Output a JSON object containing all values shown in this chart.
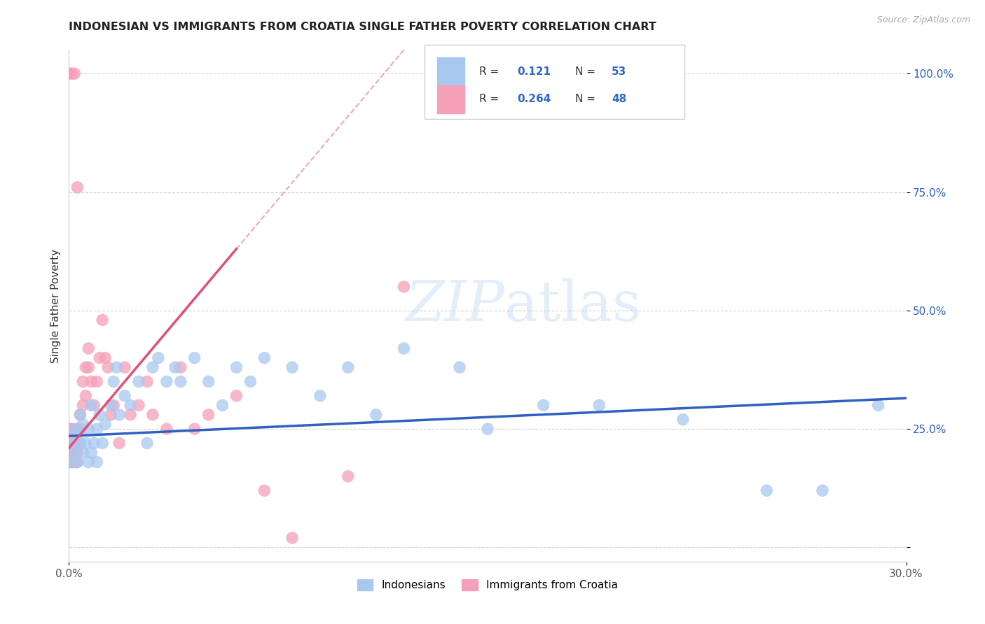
{
  "title": "INDONESIAN VS IMMIGRANTS FROM CROATIA SINGLE FATHER POVERTY CORRELATION CHART",
  "source": "Source: ZipAtlas.com",
  "ylabel_label": "Single Father Poverty",
  "x_min": 0.0,
  "x_max": 0.3,
  "y_min": -0.03,
  "y_max": 1.05,
  "indonesian_color": "#a8c8f0",
  "croatian_color": "#f4a0b8",
  "indonesian_line_color": "#3060c0",
  "croatian_line_color": "#e0507a",
  "r_indonesian": 0.121,
  "n_indonesian": 53,
  "r_croatian": 0.264,
  "n_croatian": 48,
  "legend_text_color": "#3366cc",
  "legend_n_color": "#e05878",
  "background_color": "#ffffff",
  "grid_color": "#cccccc",
  "indonesian_x": [
    0.001,
    0.001,
    0.002,
    0.002,
    0.003,
    0.003,
    0.004,
    0.004,
    0.005,
    0.005,
    0.006,
    0.007,
    0.007,
    0.008,
    0.008,
    0.009,
    0.01,
    0.01,
    0.011,
    0.012,
    0.013,
    0.015,
    0.016,
    0.017,
    0.018,
    0.02,
    0.022,
    0.025,
    0.028,
    0.03,
    0.032,
    0.035,
    0.038,
    0.04,
    0.045,
    0.05,
    0.055,
    0.06,
    0.065,
    0.07,
    0.08,
    0.09,
    0.1,
    0.11,
    0.12,
    0.14,
    0.15,
    0.17,
    0.19,
    0.22,
    0.25,
    0.27,
    0.29
  ],
  "indonesian_y": [
    0.22,
    0.18,
    0.2,
    0.25,
    0.24,
    0.18,
    0.28,
    0.22,
    0.2,
    0.26,
    0.22,
    0.25,
    0.18,
    0.3,
    0.2,
    0.22,
    0.25,
    0.18,
    0.28,
    0.22,
    0.26,
    0.3,
    0.35,
    0.38,
    0.28,
    0.32,
    0.3,
    0.35,
    0.22,
    0.38,
    0.4,
    0.35,
    0.38,
    0.35,
    0.4,
    0.35,
    0.3,
    0.38,
    0.35,
    0.4,
    0.38,
    0.32,
    0.38,
    0.28,
    0.42,
    0.38,
    0.25,
    0.3,
    0.3,
    0.27,
    0.12,
    0.12,
    0.3
  ],
  "croatian_x": [
    0.0,
    0.0,
    0.0,
    0.0,
    0.0,
    0.001,
    0.001,
    0.001,
    0.001,
    0.002,
    0.002,
    0.002,
    0.003,
    0.003,
    0.003,
    0.004,
    0.004,
    0.004,
    0.005,
    0.005,
    0.006,
    0.006,
    0.007,
    0.007,
    0.008,
    0.009,
    0.01,
    0.011,
    0.012,
    0.013,
    0.014,
    0.015,
    0.016,
    0.018,
    0.02,
    0.022,
    0.025,
    0.028,
    0.03,
    0.035,
    0.04,
    0.045,
    0.05,
    0.06,
    0.07,
    0.08,
    0.1,
    0.12
  ],
  "croatian_y": [
    0.22,
    0.2,
    0.24,
    0.18,
    0.25,
    0.22,
    0.18,
    0.2,
    0.25,
    0.2,
    0.18,
    0.22,
    0.25,
    0.2,
    0.18,
    0.28,
    0.22,
    0.25,
    0.35,
    0.3,
    0.38,
    0.32,
    0.42,
    0.38,
    0.35,
    0.3,
    0.35,
    0.4,
    0.48,
    0.4,
    0.38,
    0.28,
    0.3,
    0.22,
    0.38,
    0.28,
    0.3,
    0.35,
    0.28,
    0.25,
    0.38,
    0.25,
    0.28,
    0.32,
    0.12,
    0.02,
    0.15,
    0.55
  ]
}
